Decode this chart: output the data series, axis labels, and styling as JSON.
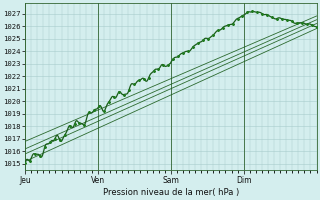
{
  "xlabel": "Pression niveau de la mer( hPa )",
  "bg_color": "#d4eeee",
  "plot_bg": "#d4eeee",
  "grid_color": "#a8cccc",
  "line_dark": "#1a5c1a",
  "line_mid": "#1f7a1f",
  "xmin": 0,
  "xmax": 96,
  "ymin": 1014.5,
  "ymax": 1027.8,
  "yticks": [
    1015,
    1016,
    1017,
    1018,
    1019,
    1020,
    1021,
    1022,
    1023,
    1024,
    1025,
    1026,
    1027
  ],
  "day_labels": [
    "Jeu",
    "Ven",
    "Sam",
    "Dim"
  ],
  "day_positions": [
    0,
    24,
    48,
    72
  ],
  "figwidth": 3.2,
  "figheight": 2.0,
  "dpi": 100
}
